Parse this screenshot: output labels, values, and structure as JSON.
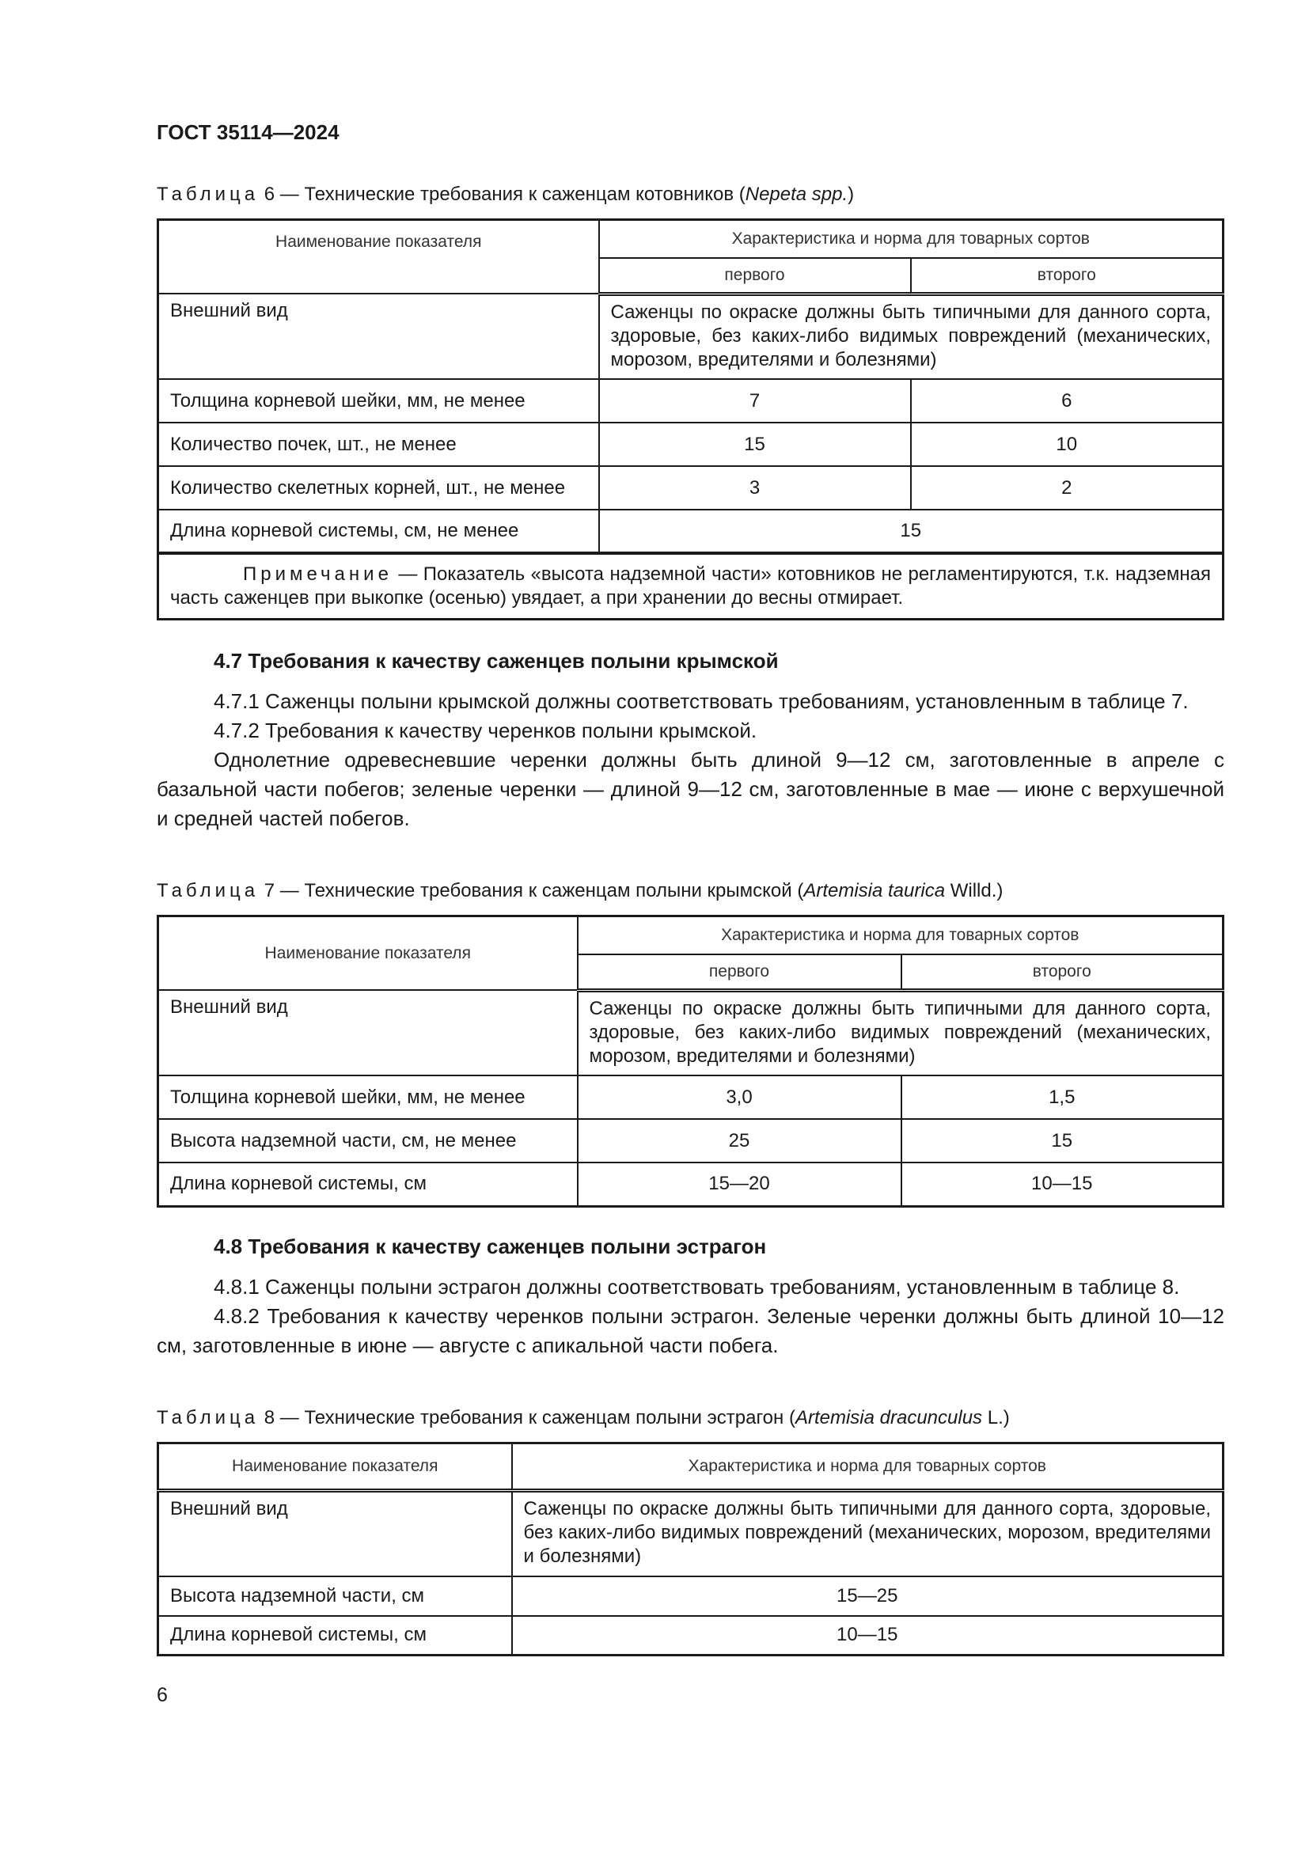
{
  "doc_title": "ГОСТ 35114—2024",
  "table6": {
    "caption_prefix": "Таблица",
    "caption_text": " 6 — Технические требования к саженцам котовников (",
    "caption_italic": "Nepeta spp.",
    "caption_end": ")",
    "col_name": "Наименование показателя",
    "col_norm": "Характеристика и норма для товарных сортов",
    "col_first": "первого",
    "col_second": "второго",
    "rows": [
      {
        "name": "Внешний вид",
        "value": "Саженцы по окраске должны быть типичными для данного сорта, здоровые, без каких-либо видимых повреждений (механических, морозом, вредителями и болезнями)"
      },
      {
        "name": "Толщина корневой шейки, мм, не менее",
        "first": "7",
        "second": "6"
      },
      {
        "name": "Количество почек, шт., не менее",
        "first": "15",
        "second": "10"
      },
      {
        "name": "Количество скелетных корней, шт., не менее",
        "first": "3",
        "second": "2"
      },
      {
        "name": "Длина корневой системы, см, не менее",
        "value": "15"
      }
    ],
    "note_label": "Примечание",
    "note_text": " — Показатель «высота надземной части» котовников не регламентируются, т.к. надземная часть саженцев при выкопке (осенью) увядает, а при хранении до весны отмирает."
  },
  "section47": {
    "heading": "4.7 Требования к качеству саженцев полыни крымской",
    "p1": "4.7.1 Саженцы полыни крымской должны соответствовать требованиям, установленным в таблице 7.",
    "p2": "4.7.2 Требования к качеству черенков полыни крымской.",
    "p3": "Однолетние одревесневшие черенки должны быть длиной 9—12 см, заготовленные в апреле с базальной части побегов; зеленые черенки — длиной 9—12 см, заготовленные в мае — июне с верхушечной и средней частей побегов."
  },
  "table7": {
    "caption_prefix": "Таблица",
    "caption_text": " 7 — Технические требования к саженцам полыни крымской (",
    "caption_italic": "Artemisia taurica",
    "caption_end": " Willd.)",
    "col_name": "Наименование показателя",
    "col_norm": "Характеристика и норма для товарных сортов",
    "col_first": "первого",
    "col_second": "второго",
    "rows": [
      {
        "name": "Внешний вид",
        "value": "Саженцы по окраске должны быть типичными для данного сорта, здоровые, без каких-либо видимых повреждений (механических, морозом, вредителями и болезнями)"
      },
      {
        "name": "Толщина корневой шейки, мм, не менее",
        "first": "3,0",
        "second": "1,5"
      },
      {
        "name": "Высота надземной части, см, не менее",
        "first": "25",
        "second": "15"
      },
      {
        "name": "Длина корневой системы, см",
        "first": "15—20",
        "second": "10—15"
      }
    ]
  },
  "section48": {
    "heading": "4.8 Требования к качеству саженцев полыни эстрагон",
    "p1": "4.8.1 Саженцы полыни эстрагон должны соответствовать требованиям, установленным в таблице 8.",
    "p2": "4.8.2 Требования к качеству черенков полыни эстрагон. Зеленые черенки должны быть длиной 10—12 см, заготовленные в июне — августе с апикальной части побега."
  },
  "table8": {
    "caption_prefix": "Таблица",
    "caption_text": " 8 — Технические требования к саженцам полыни эстрагон (",
    "caption_italic": "Artemisia dracunculus",
    "caption_end": " L.)",
    "col_name": "Наименование показателя",
    "col_norm": "Характеристика и норма для товарных сортов",
    "rows": [
      {
        "name": "Внешний вид",
        "value": "Саженцы по окраске должны быть типичными для данного сорта, здоровые, без каких-либо видимых повреждений (механических, морозом, вредителями и болезнями)"
      },
      {
        "name": "Высота надземной части, см",
        "value": "15—25"
      },
      {
        "name": "Длина корневой системы, см",
        "value": "10—15"
      }
    ]
  },
  "page_number": "6"
}
